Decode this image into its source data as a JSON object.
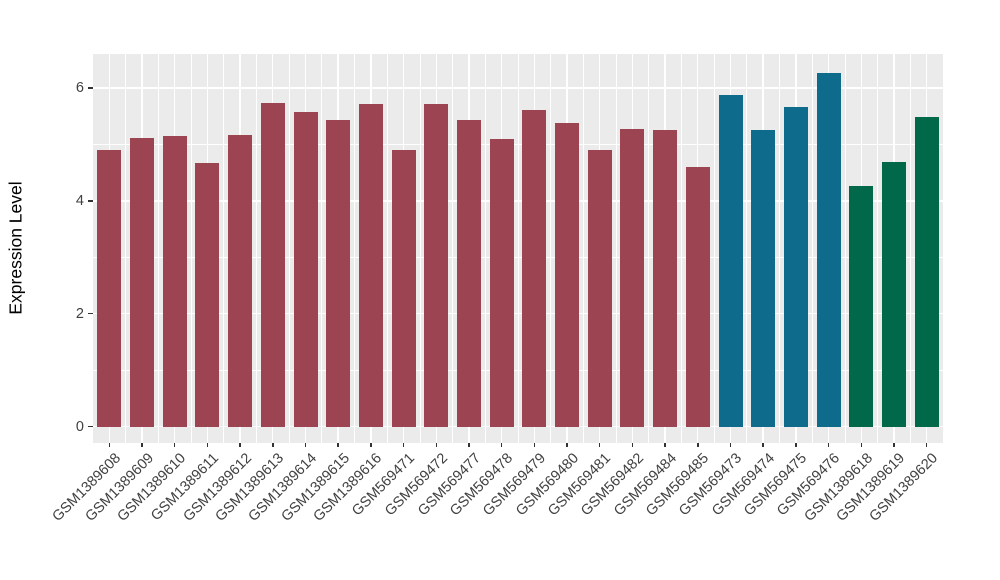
{
  "figure": {
    "background": "#FFFFFF",
    "panel_background": "#EBEBEB",
    "gridline_color": "#FFFFFF",
    "tick_color": "#333333",
    "tick_label_color": "#404040",
    "axis_title_color": "#000000"
  },
  "chart_data": {
    "type": "bar",
    "title": "",
    "xlabel": "",
    "ylabel": "Expression Level",
    "ylim": [
      0,
      6.6
    ],
    "yticks": [
      0,
      2,
      4,
      6
    ],
    "yminor": [
      1,
      3,
      5
    ],
    "grid": true,
    "legend": "none",
    "categories": [
      "GSM1389608",
      "GSM1389609",
      "GSM1389610",
      "GSM1389611",
      "GSM1389612",
      "GSM1389613",
      "GSM1389614",
      "GSM1389615",
      "GSM1389616",
      "GSM569471",
      "GSM569472",
      "GSM569477",
      "GSM569478",
      "GSM569479",
      "GSM569480",
      "GSM569481",
      "GSM569482",
      "GSM569484",
      "GSM569485",
      "GSM569473",
      "GSM569474",
      "GSM569475",
      "GSM569476",
      "GSM1389618",
      "GSM1389619",
      "GSM1389620"
    ],
    "values": [
      4.91,
      5.11,
      5.15,
      4.67,
      5.17,
      5.73,
      5.58,
      5.43,
      5.72,
      4.91,
      5.71,
      5.43,
      5.1,
      5.62,
      5.39,
      4.91,
      5.27,
      5.26,
      4.6,
      5.88,
      5.26,
      5.67,
      6.26,
      4.27,
      4.69,
      5.48
    ],
    "groups": [
      "maroon",
      "maroon",
      "maroon",
      "maroon",
      "maroon",
      "maroon",
      "maroon",
      "maroon",
      "maroon",
      "maroon",
      "maroon",
      "maroon",
      "maroon",
      "maroon",
      "maroon",
      "maroon",
      "maroon",
      "maroon",
      "maroon",
      "teal",
      "teal",
      "teal",
      "teal",
      "green",
      "green",
      "green"
    ],
    "group_colors": {
      "maroon": "#9D4452",
      "teal": "#0F6B8C",
      "green": "#02684A"
    }
  }
}
